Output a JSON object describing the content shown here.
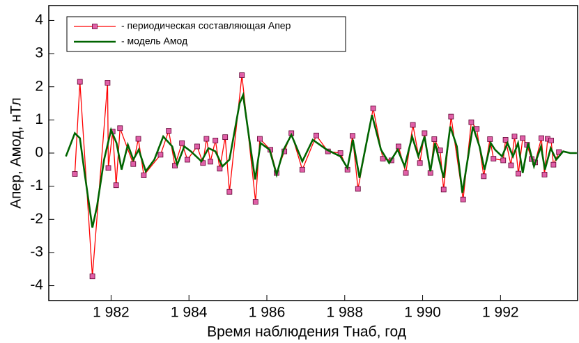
{
  "chart_data": {
    "type": "line",
    "xlabel": "Время наблюдения Тнаб, год",
    "ylabel": "Апер, Амод, нТл",
    "xlim": [
      1980.4,
      1993.98
    ],
    "ylim": [
      -4.45,
      4.45
    ],
    "xticks": [
      {
        "value": 1982,
        "label": "1 982"
      },
      {
        "value": 1984,
        "label": "1 984"
      },
      {
        "value": 1986,
        "label": "1 986"
      },
      {
        "value": 1988,
        "label": "1 988"
      },
      {
        "value": 1990,
        "label": "1 990"
      },
      {
        "value": 1992,
        "label": "1 992"
      }
    ],
    "yticks": [
      -4,
      -3,
      -2,
      -1,
      0,
      1,
      2,
      3,
      4
    ],
    "legend": "top-left",
    "series": [
      {
        "name": "- периодическая составляющая Апер",
        "color": "#ff0000",
        "marker_color": "#e060a8",
        "x": [
          1981.07,
          1981.2,
          1981.52,
          1981.91,
          1981.93,
          1982.04,
          1982.13,
          1982.23,
          1982.57,
          1982.7,
          1982.84,
          1983.27,
          1983.48,
          1983.64,
          1983.82,
          1983.96,
          1984.21,
          1984.36,
          1984.45,
          1984.55,
          1984.68,
          1984.79,
          1984.93,
          1985.04,
          1985.36,
          1985.71,
          1985.82,
          1986.09,
          1986.25,
          1986.45,
          1986.63,
          1986.91,
          1987.27,
          1987.57,
          1987.89,
          1988.07,
          1988.2,
          1988.34,
          1988.73,
          1988.98,
          1989.2,
          1989.38,
          1989.57,
          1989.75,
          1989.93,
          1990.05,
          1990.2,
          1990.3,
          1990.45,
          1990.54,
          1990.73,
          1991.04,
          1991.25,
          1991.39,
          1991.57,
          1991.73,
          1991.82,
          1992.07,
          1992.13,
          1992.27,
          1992.36,
          1992.46,
          1992.57,
          1992.68,
          1992.8,
          1992.89,
          1993.05,
          1993.13,
          1993.21,
          1993.3,
          1993.36,
          1993.5
        ],
        "values": [
          -0.63,
          2.15,
          -3.72,
          2.12,
          -0.45,
          0.65,
          -0.97,
          0.75,
          -0.33,
          0.43,
          -0.67,
          -0.05,
          0.67,
          -0.38,
          0.3,
          -0.2,
          0.2,
          -0.3,
          0.43,
          -0.26,
          0.38,
          -0.47,
          0.48,
          -1.17,
          2.35,
          -1.47,
          0.43,
          0.1,
          -0.6,
          0.05,
          0.6,
          -0.5,
          0.53,
          0.05,
          0.0,
          -0.5,
          0.52,
          -1.08,
          1.35,
          -0.17,
          -0.22,
          0.2,
          -0.6,
          0.85,
          -0.3,
          0.6,
          -0.6,
          0.42,
          0.08,
          -1.1,
          1.1,
          -1.4,
          0.93,
          0.73,
          -0.7,
          0.42,
          -0.17,
          -0.22,
          0.4,
          -0.37,
          0.5,
          -0.62,
          0.45,
          0.25,
          -0.18,
          -0.28,
          0.45,
          -0.65,
          0.43,
          0.38,
          -0.35,
          0.03
        ]
      },
      {
        "name": "- модель Амод",
        "color": "#006400",
        "x": [
          1980.84,
          1981.07,
          1981.2,
          1981.32,
          1981.52,
          1981.64,
          1981.82,
          1982.0,
          1982.14,
          1982.27,
          1982.43,
          1982.57,
          1982.71,
          1982.89,
          1983.11,
          1983.34,
          1983.57,
          1983.7,
          1983.88,
          1984.05,
          1984.32,
          1984.5,
          1984.68,
          1984.86,
          1985.04,
          1985.3,
          1985.39,
          1985.54,
          1985.7,
          1985.84,
          1986.07,
          1986.25,
          1986.43,
          1986.63,
          1986.79,
          1986.91,
          1987.18,
          1987.54,
          1987.89,
          1988.07,
          1988.21,
          1988.38,
          1988.7,
          1988.93,
          1989.14,
          1989.36,
          1989.54,
          1989.73,
          1989.89,
          1990.05,
          1990.2,
          1990.32,
          1990.54,
          1990.71,
          1990.88,
          1991.02,
          1991.29,
          1991.46,
          1991.59,
          1991.75,
          1991.86,
          1992.04,
          1992.18,
          1992.32,
          1992.45,
          1992.57,
          1992.71,
          1992.86,
          1993.04,
          1993.14,
          1993.29,
          1993.43,
          1993.61,
          1993.79,
          1993.96
        ],
        "values": [
          -0.1,
          0.6,
          0.45,
          -0.6,
          -2.25,
          -1.6,
          -0.2,
          0.7,
          0.3,
          -0.5,
          0.25,
          -0.2,
          0.1,
          -0.55,
          -0.2,
          0.5,
          0.2,
          -0.35,
          0.2,
          0.05,
          -0.25,
          0.15,
          0.05,
          -0.4,
          -0.2,
          1.5,
          1.75,
          0.5,
          -0.8,
          0.3,
          0.1,
          -0.65,
          0.1,
          0.55,
          0.1,
          -0.25,
          0.4,
          0.1,
          -0.1,
          -0.45,
          0.4,
          -0.75,
          1.15,
          0.1,
          -0.3,
          0.1,
          -0.4,
          0.5,
          -0.1,
          0.5,
          -0.55,
          0.3,
          -0.75,
          0.8,
          0.2,
          -1.2,
          0.8,
          0.2,
          -0.5,
          0.3,
          0.1,
          -0.1,
          0.3,
          -0.1,
          0.3,
          -0.6,
          0.3,
          -0.4,
          0.2,
          -0.5,
          0.15,
          -0.2,
          0.05,
          0.0,
          0.0
        ]
      }
    ]
  }
}
